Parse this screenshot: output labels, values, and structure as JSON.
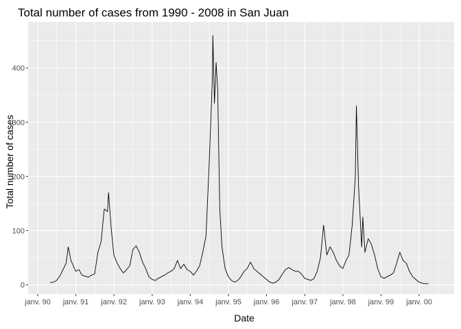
{
  "chart_data": {
    "type": "line",
    "title": "Total number of cases from 1990 - 2008 in San Juan",
    "xlabel": "Date",
    "ylabel": "Total number of cases",
    "x_tick_labels": [
      "janv. 90",
      "janv. 91",
      "janv. 92",
      "janv. 93",
      "janv. 94",
      "janv. 95",
      "janv. 96",
      "janv. 97",
      "janv. 98",
      "janv. 99",
      "janv. 00"
    ],
    "y_ticks": [
      0,
      100,
      200,
      300,
      400
    ],
    "xlim": [
      "1989-10-01",
      "2000-12-01"
    ],
    "ylim": [
      -17,
      485
    ],
    "grid": true,
    "background": "#ebebeb",
    "line_color": "#000000",
    "series": [
      {
        "values": [
          [
            "1990-04-30",
            4
          ],
          [
            "1990-05-31",
            5
          ],
          [
            "1990-06-30",
            8
          ],
          [
            "1990-07-31",
            16
          ],
          [
            "1990-08-31",
            28
          ],
          [
            "1990-09-30",
            40
          ],
          [
            "1990-10-20",
            70
          ],
          [
            "1990-11-15",
            45
          ],
          [
            "1990-12-31",
            25
          ],
          [
            "1991-01-31",
            28
          ],
          [
            "1991-02-28",
            18
          ],
          [
            "1991-03-31",
            16
          ],
          [
            "1991-04-30",
            14
          ],
          [
            "1991-05-31",
            18
          ],
          [
            "1991-06-30",
            20
          ],
          [
            "1991-07-31",
            60
          ],
          [
            "1991-08-31",
            80
          ],
          [
            "1991-09-30",
            140
          ],
          [
            "1991-10-31",
            135
          ],
          [
            "1991-11-10",
            170
          ],
          [
            "1991-12-05",
            105
          ],
          [
            "1991-12-31",
            55
          ],
          [
            "1992-01-31",
            40
          ],
          [
            "1992-02-29",
            30
          ],
          [
            "1992-03-31",
            22
          ],
          [
            "1992-04-30",
            28
          ],
          [
            "1992-05-31",
            35
          ],
          [
            "1992-06-30",
            65
          ],
          [
            "1992-07-31",
            72
          ],
          [
            "1992-08-31",
            60
          ],
          [
            "1992-09-30",
            42
          ],
          [
            "1992-10-31",
            30
          ],
          [
            "1992-11-30",
            15
          ],
          [
            "1992-12-31",
            10
          ],
          [
            "1993-01-31",
            8
          ],
          [
            "1993-02-28",
            12
          ],
          [
            "1993-03-31",
            15
          ],
          [
            "1993-04-30",
            18
          ],
          [
            "1993-05-31",
            22
          ],
          [
            "1993-06-30",
            25
          ],
          [
            "1993-07-31",
            30
          ],
          [
            "1993-08-31",
            45
          ],
          [
            "1993-09-30",
            30
          ],
          [
            "1993-10-31",
            38
          ],
          [
            "1993-11-30",
            28
          ],
          [
            "1993-12-31",
            25
          ],
          [
            "1994-01-31",
            18
          ],
          [
            "1994-02-28",
            25
          ],
          [
            "1994-03-31",
            35
          ],
          [
            "1994-04-30",
            60
          ],
          [
            "1994-05-31",
            90
          ],
          [
            "1994-06-30",
            220
          ],
          [
            "1994-07-31",
            380
          ],
          [
            "1994-08-05",
            460
          ],
          [
            "1994-08-20",
            335
          ],
          [
            "1994-09-05",
            410
          ],
          [
            "1994-09-20",
            360
          ],
          [
            "1994-10-10",
            140
          ],
          [
            "1994-10-31",
            70
          ],
          [
            "1994-11-30",
            30
          ],
          [
            "1994-12-31",
            15
          ],
          [
            "1995-01-31",
            8
          ],
          [
            "1995-02-28",
            5
          ],
          [
            "1995-03-31",
            8
          ],
          [
            "1995-04-30",
            15
          ],
          [
            "1995-05-31",
            25
          ],
          [
            "1995-06-30",
            30
          ],
          [
            "1995-07-31",
            42
          ],
          [
            "1995-08-31",
            30
          ],
          [
            "1995-09-30",
            25
          ],
          [
            "1995-10-31",
            20
          ],
          [
            "1995-11-30",
            15
          ],
          [
            "1995-12-31",
            10
          ],
          [
            "1996-01-31",
            5
          ],
          [
            "1996-02-29",
            3
          ],
          [
            "1996-03-31",
            5
          ],
          [
            "1996-04-30",
            10
          ],
          [
            "1996-05-31",
            20
          ],
          [
            "1996-06-30",
            28
          ],
          [
            "1996-07-31",
            32
          ],
          [
            "1996-08-31",
            28
          ],
          [
            "1996-09-30",
            25
          ],
          [
            "1996-10-31",
            25
          ],
          [
            "1996-11-30",
            20
          ],
          [
            "1996-12-31",
            12
          ],
          [
            "1997-01-31",
            10
          ],
          [
            "1997-02-28",
            8
          ],
          [
            "1997-03-31",
            12
          ],
          [
            "1997-04-30",
            25
          ],
          [
            "1997-05-31",
            50
          ],
          [
            "1997-06-30",
            110
          ],
          [
            "1997-07-31",
            55
          ],
          [
            "1997-08-31",
            70
          ],
          [
            "1997-09-30",
            60
          ],
          [
            "1997-10-31",
            45
          ],
          [
            "1997-11-30",
            35
          ],
          [
            "1997-12-31",
            30
          ],
          [
            "1998-01-31",
            45
          ],
          [
            "1998-02-28",
            55
          ],
          [
            "1998-03-31",
            110
          ],
          [
            "1998-04-30",
            200
          ],
          [
            "1998-05-10",
            330
          ],
          [
            "1998-05-31",
            180
          ],
          [
            "1998-06-30",
            70
          ],
          [
            "1998-07-10",
            125
          ],
          [
            "1998-07-31",
            60
          ],
          [
            "1998-08-31",
            85
          ],
          [
            "1998-09-30",
            75
          ],
          [
            "1998-10-31",
            55
          ],
          [
            "1998-11-30",
            30
          ],
          [
            "1998-12-31",
            15
          ],
          [
            "1999-01-31",
            12
          ],
          [
            "1999-02-28",
            15
          ],
          [
            "1999-03-31",
            18
          ],
          [
            "1999-04-30",
            22
          ],
          [
            "1999-05-31",
            40
          ],
          [
            "1999-06-30",
            60
          ],
          [
            "1999-07-31",
            45
          ],
          [
            "1999-08-31",
            40
          ],
          [
            "1999-09-30",
            25
          ],
          [
            "1999-10-31",
            15
          ],
          [
            "1999-11-30",
            10
          ],
          [
            "1999-12-31",
            5
          ],
          [
            "2000-01-31",
            3
          ],
          [
            "2000-02-29",
            2
          ],
          [
            "2000-03-31",
            2
          ]
        ]
      }
    ]
  }
}
